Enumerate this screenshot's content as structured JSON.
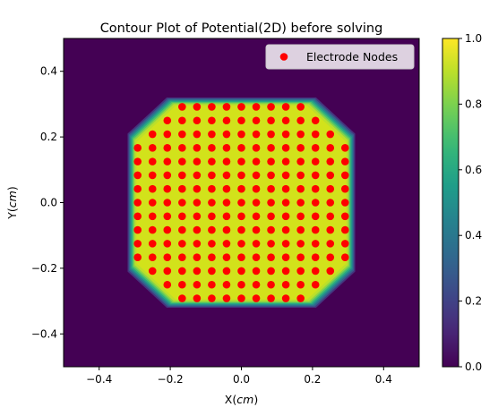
{
  "chart_data": {
    "type": "heatmap",
    "title": "Contour Plot of Potential(2D) before solving",
    "xlabel": {
      "prefix": "X(",
      "var": "cm",
      "suffix": ")"
    },
    "ylabel": {
      "prefix": "Y(",
      "var": "cm",
      "suffix": ")"
    },
    "xlim": [
      -0.5,
      0.5
    ],
    "ylim": [
      -0.5,
      0.5
    ],
    "xticks": [
      -0.4,
      -0.2,
      0.0,
      0.2,
      0.4
    ],
    "xtick_labels": [
      "−0.4",
      "−0.2",
      "0.0",
      "0.2",
      "0.4"
    ],
    "yticks": [
      -0.4,
      -0.2,
      0.0,
      0.2,
      0.4
    ],
    "ytick_labels": [
      "−0.4",
      "−0.2",
      "0.0",
      "0.2",
      "0.4"
    ],
    "field": {
      "shape": "octagon",
      "flat_half_width": 0.32,
      "corner_half_width": 0.21,
      "inside_value": 1.0,
      "outside_value": 0.0
    },
    "colorbar": {
      "range": [
        0.0,
        1.0
      ],
      "ticks": [
        0.0,
        0.2,
        0.4,
        0.6,
        0.8,
        1.0
      ],
      "tick_labels": [
        "0.0",
        "0.2",
        "0.4",
        "0.6",
        "0.8",
        "1.0"
      ],
      "colormap": "viridis"
    },
    "series": [
      {
        "name": "Electrode Nodes",
        "kind": "scatter",
        "color": "#ff0000",
        "grid_step": 0.04167,
        "x_range": [
          -0.2917,
          0.2917
        ],
        "y_range": [
          -0.2917,
          0.2917
        ],
        "clip_shape": "octagon",
        "clip_flat_half_width": 0.3,
        "clip_corner_half_width": 0.2
      }
    ],
    "legend": {
      "position": "top-right",
      "label": "Electrode Nodes"
    }
  }
}
